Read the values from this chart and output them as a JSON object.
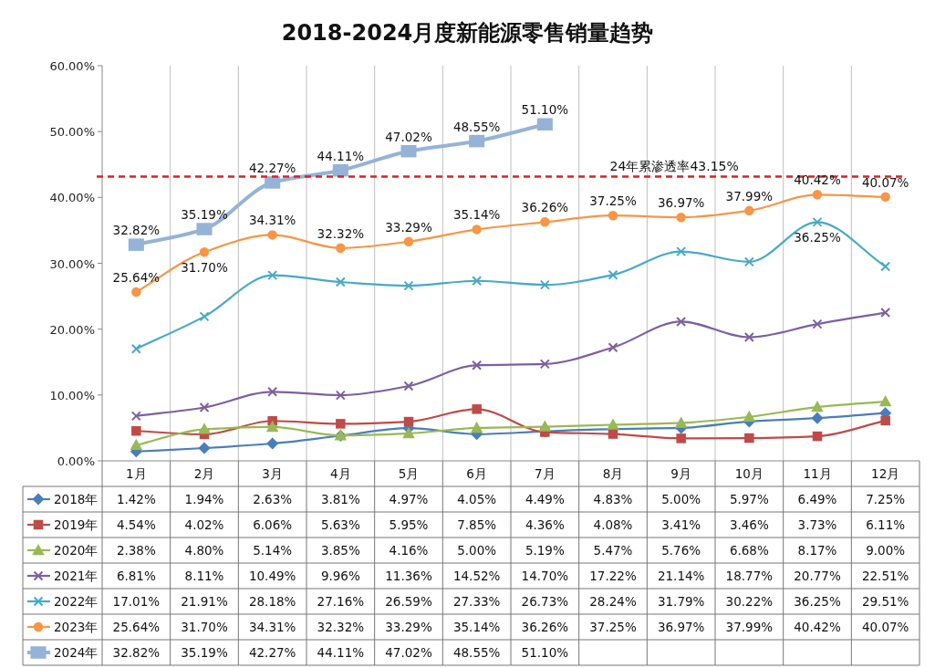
{
  "chart_data": {
    "type": "line",
    "title": "2018-2024月度新能源零售销量趋势",
    "categories": [
      "1月",
      "2月",
      "3月",
      "4月",
      "5月",
      "6月",
      "7月",
      "8月",
      "9月",
      "10月",
      "11月",
      "12月"
    ],
    "series": [
      {
        "name": "2018年",
        "color": "#4a7ebb",
        "marker": "diamond",
        "values": [
          1.42,
          1.94,
          2.63,
          3.81,
          4.97,
          4.05,
          4.49,
          4.83,
          5.0,
          5.97,
          6.49,
          7.25
        ],
        "value_labels": [
          "1.42%",
          "1.94%",
          "2.63%",
          "3.81%",
          "4.97%",
          "4.05%",
          "4.49%",
          "4.83%",
          "5.00%",
          "5.97%",
          "6.49%",
          "7.25%"
        ]
      },
      {
        "name": "2019年",
        "color": "#be4b48",
        "marker": "square",
        "values": [
          4.54,
          4.02,
          6.06,
          5.63,
          5.95,
          7.85,
          4.36,
          4.08,
          3.41,
          3.46,
          3.73,
          6.11
        ],
        "value_labels": [
          "4.54%",
          "4.02%",
          "6.06%",
          "5.63%",
          "5.95%",
          "7.85%",
          "4.36%",
          "4.08%",
          "3.41%",
          "3.46%",
          "3.73%",
          "6.11%"
        ]
      },
      {
        "name": "2020年",
        "color": "#98b954",
        "marker": "triangle",
        "values": [
          2.38,
          4.8,
          5.14,
          3.85,
          4.16,
          5.0,
          5.19,
          5.47,
          5.76,
          6.68,
          8.17,
          9.0
        ],
        "value_labels": [
          "2.38%",
          "4.80%",
          "5.14%",
          "3.85%",
          "4.16%",
          "5.00%",
          "5.19%",
          "5.47%",
          "5.76%",
          "6.68%",
          "8.17%",
          "9.00%"
        ]
      },
      {
        "name": "2021年",
        "color": "#7d60a0",
        "marker": "cross",
        "values": [
          6.81,
          8.11,
          10.49,
          9.96,
          11.36,
          14.52,
          14.7,
          17.22,
          21.14,
          18.77,
          20.77,
          22.51
        ],
        "value_labels": [
          "6.81%",
          "8.11%",
          "10.49%",
          "9.96%",
          "11.36%",
          "14.52%",
          "14.70%",
          "17.22%",
          "21.14%",
          "18.77%",
          "20.77%",
          "22.51%"
        ]
      },
      {
        "name": "2022年",
        "color": "#46aac5",
        "marker": "cross",
        "values": [
          17.01,
          21.91,
          28.18,
          27.16,
          26.59,
          27.33,
          26.73,
          28.24,
          31.79,
          30.22,
          36.25,
          29.51
        ],
        "value_labels": [
          "17.01%",
          "21.91%",
          "28.18%",
          "27.16%",
          "26.59%",
          "27.33%",
          "26.73%",
          "28.24%",
          "31.79%",
          "30.22%",
          "36.25%",
          "29.51%"
        ]
      },
      {
        "name": "2023年",
        "color": "#f79646",
        "marker": "circle",
        "values": [
          25.64,
          31.7,
          34.31,
          32.32,
          33.29,
          35.14,
          36.26,
          37.25,
          36.97,
          37.99,
          40.42,
          40.07
        ],
        "value_labels": [
          "25.64%",
          "31.70%",
          "34.31%",
          "32.32%",
          "33.29%",
          "35.14%",
          "36.26%",
          "37.25%",
          "36.97%",
          "37.99%",
          "40.42%",
          "40.07%"
        ]
      },
      {
        "name": "2024年",
        "color": "#95b3d7",
        "marker": "square",
        "values": [
          32.82,
          35.19,
          42.27,
          44.11,
          47.02,
          48.55,
          51.1,
          null,
          null,
          null,
          null,
          null
        ],
        "value_labels": [
          "32.82%",
          "35.19%",
          "42.27%",
          "44.11%",
          "47.02%",
          "48.55%",
          "51.10%",
          null,
          null,
          null,
          null,
          null
        ]
      }
    ],
    "ylim": [
      0,
      60
    ],
    "yticks": [
      {
        "value": 0,
        "label": "0.00%"
      },
      {
        "value": 10,
        "label": "10.00%"
      },
      {
        "value": 20,
        "label": "20.00%"
      },
      {
        "value": 30,
        "label": "30.00%"
      },
      {
        "value": 40,
        "label": "40.00%"
      },
      {
        "value": 50,
        "label": "50.00%"
      },
      {
        "value": 60,
        "label": "60.00%"
      }
    ],
    "ref_lines": [
      {
        "axis": "y",
        "value": 43.15,
        "label": "24年累渗透率43.15%",
        "color": "#e02020",
        "line_style": "dashed"
      }
    ],
    "annotations": [
      {
        "text": "32.82%",
        "x": "1月",
        "y": 32.82
      },
      {
        "text": "35.19%",
        "x": "2月",
        "y": 35.19
      },
      {
        "text": "42.27%",
        "x": "3月",
        "y": 42.27
      },
      {
        "text": "44.11%",
        "x": "4月",
        "y": 44.11
      },
      {
        "text": "47.02%",
        "x": "5月",
        "y": 47.02
      },
      {
        "text": "48.55%",
        "x": "6月",
        "y": 48.55
      },
      {
        "text": "51.10%",
        "x": "7月",
        "y": 51.1
      },
      {
        "text": "25.64%",
        "x": "1月",
        "y": 25.64
      },
      {
        "text": "31.70%",
        "x": "2月",
        "y": 31.7
      },
      {
        "text": "34.31%",
        "x": "3月",
        "y": 34.31
      },
      {
        "text": "32.32%",
        "x": "4月",
        "y": 32.32
      },
      {
        "text": "33.29%",
        "x": "5月",
        "y": 33.29
      },
      {
        "text": "35.14%",
        "x": "6月",
        "y": 35.14
      },
      {
        "text": "36.26%",
        "x": "7月",
        "y": 36.26
      },
      {
        "text": "37.25%",
        "x": "8月",
        "y": 37.25
      },
      {
        "text": "36.97%",
        "x": "9月",
        "y": 36.97
      },
      {
        "text": "37.99%",
        "x": "10月",
        "y": 37.99
      },
      {
        "text": "40.42%",
        "x": "11月",
        "y": 40.42
      },
      {
        "text": "40.07%",
        "x": "12月",
        "y": 40.07
      },
      {
        "text": "36.25%",
        "x": "11月",
        "y": 36.25
      }
    ],
    "grid": "x",
    "legend": "bottom",
    "line_style": "solid"
  }
}
